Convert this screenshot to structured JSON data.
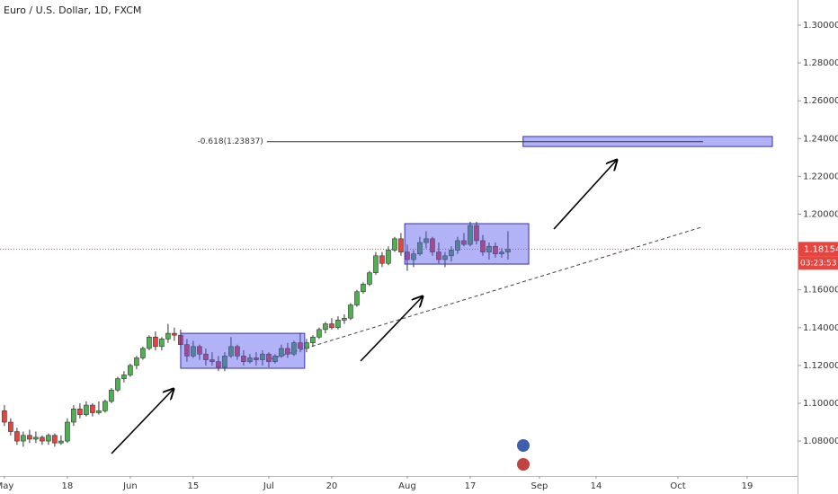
{
  "chart_data": {
    "type": "candlestick",
    "title": "Euro / U.S. Dollar, 1D, FXCM",
    "x": [
      0,
      1,
      2,
      3,
      4,
      5,
      6,
      7,
      8,
      9,
      10,
      11,
      12,
      13,
      14,
      15,
      16,
      17,
      18,
      19,
      20,
      21,
      22,
      23,
      24,
      25,
      26,
      27,
      28,
      29,
      30,
      31,
      32,
      33,
      34,
      35,
      36,
      37,
      38,
      39,
      40,
      41,
      42,
      43,
      44,
      45,
      46,
      47,
      48,
      49,
      50,
      51,
      52,
      53,
      54,
      55,
      56,
      57,
      58,
      59,
      60,
      61,
      62,
      63,
      64,
      65,
      66,
      67,
      68,
      69,
      70,
      71,
      72,
      73,
      74,
      75,
      76,
      77,
      78,
      79,
      80
    ],
    "open": [
      1.096,
      1.09,
      1.085,
      1.08,
      1.083,
      1.081,
      1.082,
      1.08,
      1.083,
      1.079,
      1.08,
      1.09,
      1.097,
      1.094,
      1.099,
      1.095,
      1.096,
      1.101,
      1.107,
      1.113,
      1.115,
      1.12,
      1.124,
      1.129,
      1.135,
      1.13,
      1.134,
      1.137,
      1.136,
      1.131,
      1.125,
      1.13,
      1.126,
      1.123,
      1.122,
      1.119,
      1.125,
      1.13,
      1.125,
      1.122,
      1.124,
      1.123,
      1.126,
      1.122,
      1.125,
      1.129,
      1.126,
      1.132,
      1.129,
      1.132,
      1.135,
      1.139,
      1.142,
      1.14,
      1.144,
      1.145,
      1.152,
      1.159,
      1.163,
      1.169,
      1.178,
      1.174,
      1.181,
      1.187,
      1.18,
      1.176,
      1.179,
      1.185,
      1.187,
      1.18,
      1.176,
      1.178,
      1.181,
      1.186,
      1.184,
      1.194,
      1.186,
      1.18,
      1.183,
      1.179,
      1.18
    ],
    "high": [
      1.099,
      1.092,
      1.087,
      1.085,
      1.086,
      1.085,
      1.083,
      1.084,
      1.084,
      1.083,
      1.092,
      1.099,
      1.1,
      1.101,
      1.1,
      1.101,
      1.102,
      1.108,
      1.114,
      1.117,
      1.121,
      1.125,
      1.13,
      1.136,
      1.138,
      1.135,
      1.142,
      1.14,
      1.139,
      1.134,
      1.133,
      1.131,
      1.129,
      1.127,
      1.125,
      1.127,
      1.135,
      1.131,
      1.128,
      1.126,
      1.127,
      1.128,
      1.127,
      1.126,
      1.131,
      1.132,
      1.133,
      1.137,
      1.134,
      1.136,
      1.14,
      1.143,
      1.145,
      1.146,
      1.147,
      1.153,
      1.16,
      1.164,
      1.17,
      1.18,
      1.18,
      1.183,
      1.188,
      1.19,
      1.184,
      1.181,
      1.188,
      1.191,
      1.188,
      1.185,
      1.18,
      1.183,
      1.188,
      1.19,
      1.196,
      1.196,
      1.189,
      1.185,
      1.185,
      1.182,
      1.191
    ],
    "low": [
      1.088,
      1.083,
      1.078,
      1.077,
      1.079,
      1.079,
      1.078,
      1.078,
      1.077,
      1.078,
      1.079,
      1.088,
      1.092,
      1.093,
      1.093,
      1.094,
      1.095,
      1.1,
      1.106,
      1.111,
      1.114,
      1.118,
      1.123,
      1.128,
      1.128,
      1.128,
      1.132,
      1.133,
      1.129,
      1.122,
      1.124,
      1.123,
      1.12,
      1.12,
      1.117,
      1.117,
      1.124,
      1.123,
      1.12,
      1.121,
      1.12,
      1.12,
      1.119,
      1.121,
      1.124,
      1.124,
      1.125,
      1.127,
      1.127,
      1.13,
      1.134,
      1.137,
      1.139,
      1.139,
      1.142,
      1.144,
      1.151,
      1.158,
      1.162,
      1.168,
      1.172,
      1.173,
      1.18,
      1.178,
      1.17,
      1.172,
      1.178,
      1.182,
      1.178,
      1.174,
      1.172,
      1.175,
      1.179,
      1.183,
      1.183,
      1.184,
      1.178,
      1.176,
      1.177,
      1.177,
      1.176
    ],
    "close": [
      1.09,
      1.085,
      1.08,
      1.083,
      1.081,
      1.082,
      1.08,
      1.083,
      1.079,
      1.08,
      1.09,
      1.097,
      1.094,
      1.099,
      1.095,
      1.096,
      1.101,
      1.107,
      1.113,
      1.115,
      1.12,
      1.124,
      1.129,
      1.135,
      1.13,
      1.134,
      1.137,
      1.136,
      1.131,
      1.125,
      1.13,
      1.126,
      1.123,
      1.122,
      1.119,
      1.125,
      1.13,
      1.125,
      1.122,
      1.124,
      1.123,
      1.126,
      1.122,
      1.125,
      1.129,
      1.126,
      1.132,
      1.129,
      1.132,
      1.135,
      1.139,
      1.142,
      1.14,
      1.144,
      1.145,
      1.152,
      1.159,
      1.163,
      1.169,
      1.178,
      1.174,
      1.181,
      1.187,
      1.18,
      1.176,
      1.179,
      1.185,
      1.187,
      1.18,
      1.176,
      1.178,
      1.181,
      1.186,
      1.184,
      1.194,
      1.186,
      1.18,
      1.183,
      1.179,
      1.18,
      1.18154
    ],
    "up_color": "#4fb04f",
    "down_color": "#e5443f",
    "xlim": [
      -0.7,
      126
    ],
    "xticks": [
      {
        "value": 0,
        "label": "May"
      },
      {
        "value": 10,
        "label": "18"
      },
      {
        "value": 20,
        "label": "Jun"
      },
      {
        "value": 30,
        "label": "15"
      },
      {
        "value": 42,
        "label": "Jul"
      },
      {
        "value": 52,
        "label": "20"
      },
      {
        "value": 64,
        "label": "Aug"
      },
      {
        "value": 74,
        "label": "17"
      },
      {
        "value": 85,
        "label": "Sep"
      },
      {
        "value": 94,
        "label": "14"
      },
      {
        "value": 107,
        "label": "Oct"
      },
      {
        "value": 118,
        "label": "19"
      }
    ],
    "ylim": [
      1.0615,
      1.3133
    ],
    "yticks": [
      {
        "value": 1.08,
        "label": "1.08000"
      },
      {
        "value": 1.1,
        "label": "1.10000"
      },
      {
        "value": 1.12,
        "label": "1.12000"
      },
      {
        "value": 1.14,
        "label": "1.14000"
      },
      {
        "value": 1.16,
        "label": "1.16000"
      },
      {
        "value": 1.18,
        "label": "1.18000"
      },
      {
        "value": 1.2,
        "label": "1.20000"
      },
      {
        "value": 1.22,
        "label": "1.22000"
      },
      {
        "value": 1.24,
        "label": "1.24000"
      },
      {
        "value": 1.26,
        "label": "1.26000"
      },
      {
        "value": 1.28,
        "label": "1.28000"
      },
      {
        "value": 1.3,
        "label": "1.30000"
      }
    ],
    "grid": false,
    "last_price": 1.18154,
    "countdown": "03:23:53",
    "zones": [
      {
        "start": 28,
        "end": 47.7,
        "low": 1.1185,
        "high": 1.137,
        "color": "#5555ee"
      },
      {
        "start": 63.6,
        "end": 83.3,
        "low": 1.1736,
        "high": 1.195,
        "color": "#5555ee"
      },
      {
        "start": 82.4,
        "end": 122,
        "low": 1.2358,
        "high": 1.2411,
        "color": "#5555ee"
      }
    ],
    "fib_level": {
      "label": "-0.618(1.23837)",
      "value": 1.23837,
      "start": 41.7,
      "end": 111
    }
  }
}
